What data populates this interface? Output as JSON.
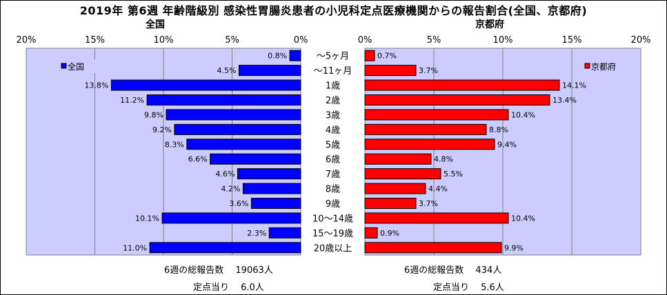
{
  "title": "2019年 第6週 年齢階級別 感染性胃腸炎患者の小児科定点医療機関からの報告割合(全国、京都府)",
  "ticks": [
    "0%",
    "5%",
    "10%",
    "15%",
    "20%"
  ],
  "colors": {
    "plot_bg": "#ccccff",
    "national": "#0000ff",
    "kyoto": "#ff0000"
  },
  "chart_data": [
    {
      "type": "bar",
      "title": "全国",
      "orientation": "horizontal",
      "direction": "right-to-left",
      "xlim": [
        0,
        20
      ],
      "unit": "%",
      "categories": [
        "〜5ヶ月",
        "〜11ヶ月",
        "1歳",
        "2歳",
        "3歳",
        "4歳",
        "5歳",
        "6歳",
        "7歳",
        "8歳",
        "9歳",
        "10〜14歳",
        "15〜19歳",
        "20歳以上"
      ],
      "series": [
        {
          "name": "全国",
          "values": [
            0.8,
            4.5,
            13.8,
            11.2,
            9.8,
            9.2,
            8.3,
            6.6,
            4.6,
            4.2,
            3.6,
            10.1,
            2.3,
            11.0
          ]
        }
      ],
      "labels": [
        "0.8%",
        "4.5%",
        "13.8%",
        "11.2%",
        "9.8%",
        "9.2%",
        "8.3%",
        "6.6%",
        "4.6%",
        "4.2%",
        "3.6%",
        "10.1%",
        "2.3%",
        "11.0%"
      ],
      "legend": "top-left",
      "grid": true
    },
    {
      "type": "bar",
      "title": "京都府",
      "orientation": "horizontal",
      "direction": "left-to-right",
      "xlim": [
        0,
        20
      ],
      "unit": "%",
      "categories": [
        "〜5ヶ月",
        "〜11ヶ月",
        "1歳",
        "2歳",
        "3歳",
        "4歳",
        "5歳",
        "6歳",
        "7歳",
        "8歳",
        "9歳",
        "10〜14歳",
        "15〜19歳",
        "20歳以上"
      ],
      "series": [
        {
          "name": "京都府",
          "values": [
            0.7,
            3.7,
            14.1,
            13.4,
            10.4,
            8.8,
            9.4,
            4.8,
            5.5,
            4.4,
            3.7,
            10.4,
            0.9,
            9.9
          ]
        }
      ],
      "labels": [
        "0.7%",
        "3.7%",
        "14.1%",
        "13.4%",
        "10.4%",
        "8.8%",
        "9.4%",
        "4.8%",
        "5.5%",
        "4.4%",
        "3.7%",
        "10.4%",
        "0.9%",
        "9.9%"
      ],
      "legend": "top-right",
      "grid": true
    }
  ],
  "footer": {
    "national_reports": "6週の総報告数　 19063人",
    "national_per_site": "定点当り　 6.0人",
    "kyoto_reports": "6週の総報告数　 434人",
    "kyoto_per_site": "定点当り　 5.6人"
  }
}
